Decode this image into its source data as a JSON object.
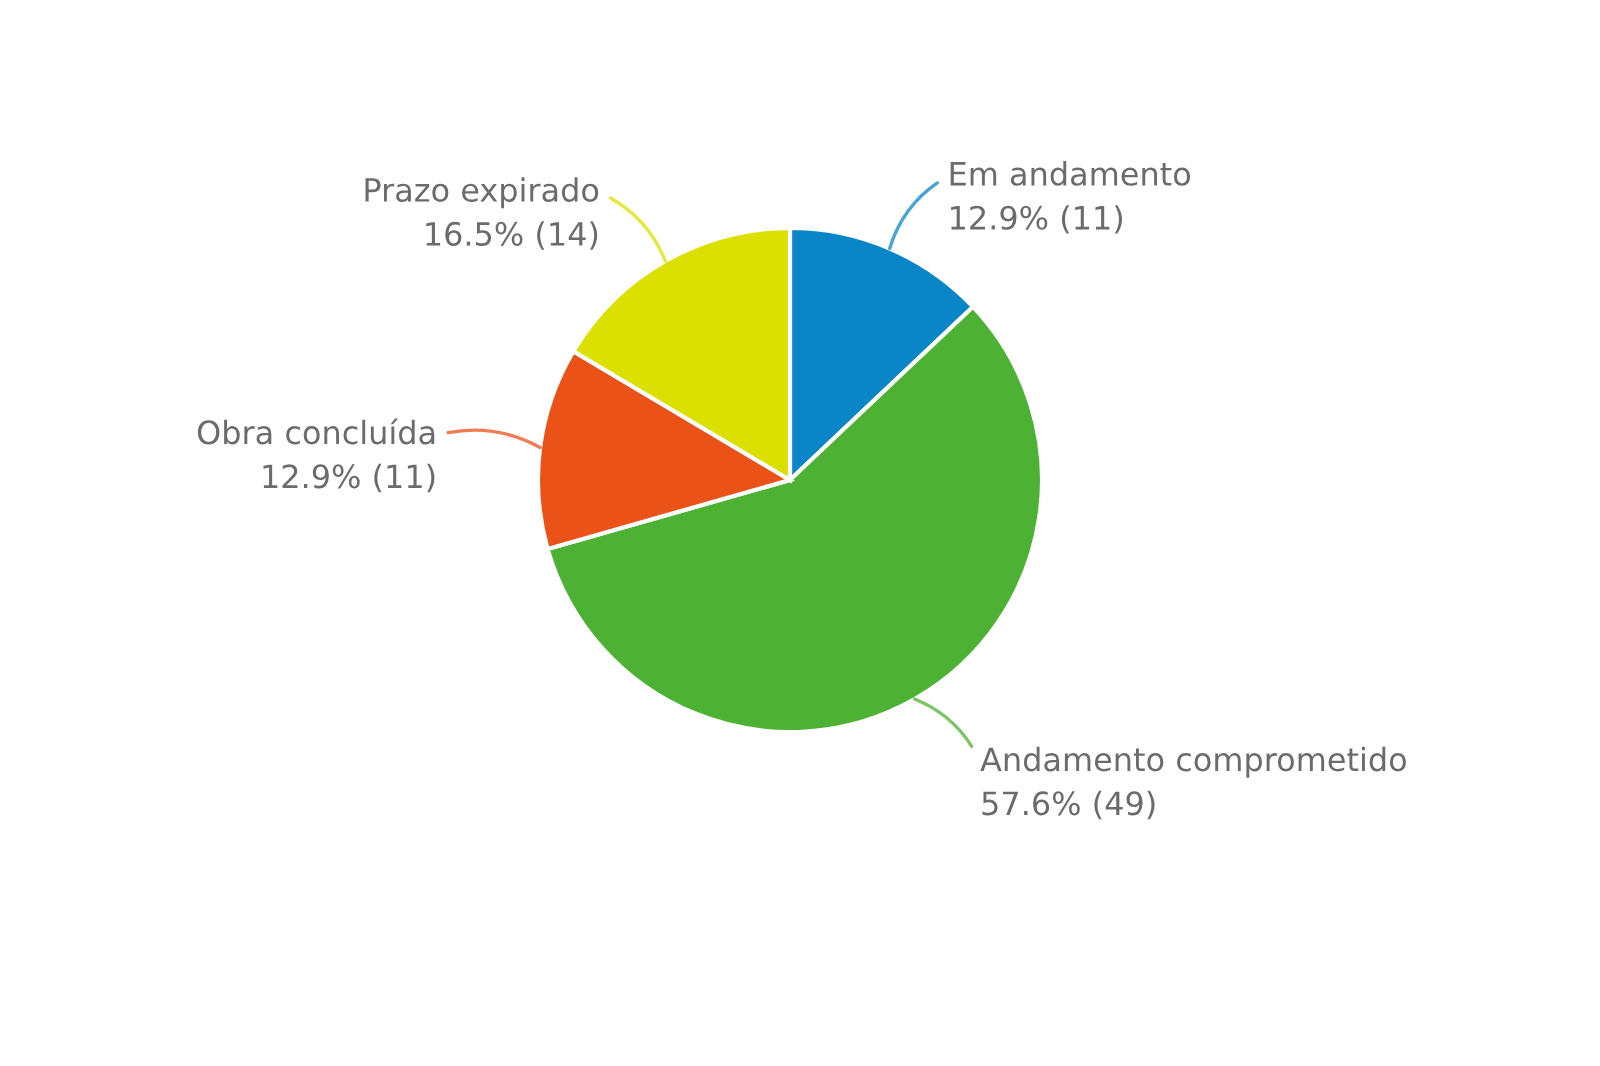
{
  "chart_data": {
    "type": "pie",
    "categories": [
      "Em andamento",
      "Andamento comprometido",
      "Obra concluída",
      "Prazo expirado"
    ],
    "values": [
      11,
      49,
      11,
      14
    ],
    "value_labels": [
      "12.9% (11)",
      "57.6% (49)",
      "12.9% (11)",
      "16.5% (14)"
    ],
    "colors": [
      "#0a86c8",
      "#4db233",
      "#eb5218",
      "#dbe000"
    ]
  }
}
